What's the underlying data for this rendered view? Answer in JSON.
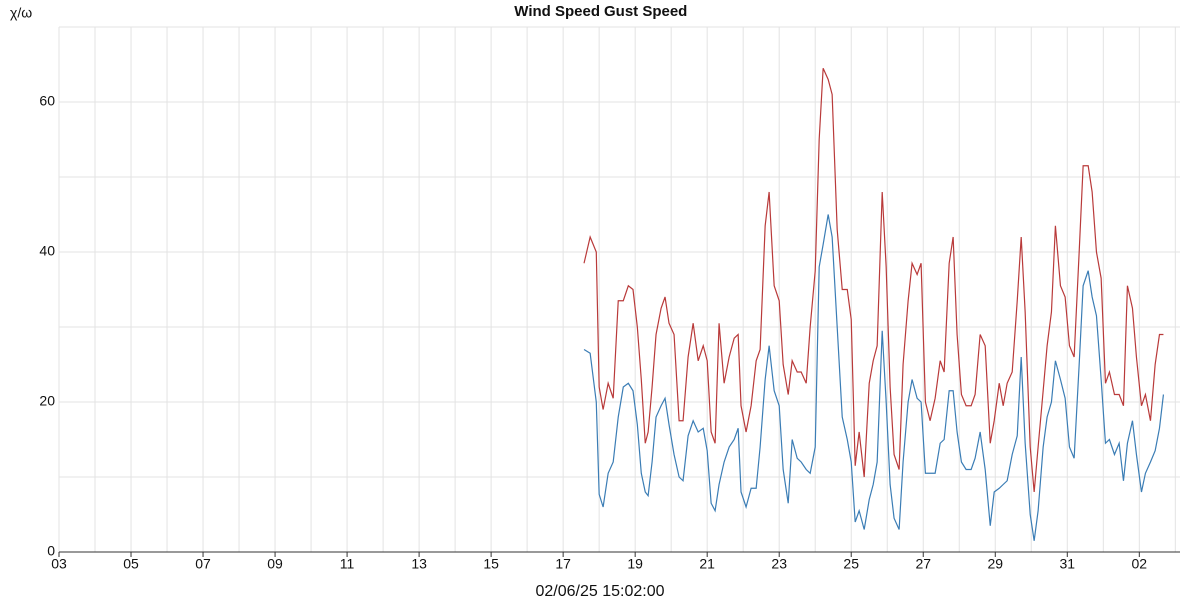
{
  "chart_data": {
    "type": "line",
    "ylabel": "χ/ω",
    "xlabel": "02/06/25 15:02:00",
    "legend": "top",
    "grid": true,
    "xlim": [
      0,
      31.13
    ],
    "ylim": [
      0,
      70
    ],
    "xticks": [
      {
        "value": 0,
        "label": "03"
      },
      {
        "value": 2,
        "label": "05"
      },
      {
        "value": 4,
        "label": "07"
      },
      {
        "value": 6,
        "label": "09"
      },
      {
        "value": 8,
        "label": "11"
      },
      {
        "value": 10,
        "label": "13"
      },
      {
        "value": 12,
        "label": "15"
      },
      {
        "value": 14,
        "label": "17"
      },
      {
        "value": 16,
        "label": "19"
      },
      {
        "value": 18,
        "label": "21"
      },
      {
        "value": 20,
        "label": "23"
      },
      {
        "value": 22,
        "label": "25"
      },
      {
        "value": 24,
        "label": "27"
      },
      {
        "value": 26,
        "label": "29"
      },
      {
        "value": 28,
        "label": "31"
      },
      {
        "value": 30,
        "label": "02"
      }
    ],
    "xminorticks": [
      1,
      3,
      5,
      7,
      9,
      11,
      13,
      15,
      17,
      19,
      21,
      23,
      25,
      27,
      29,
      31
    ],
    "yticks": [
      0,
      20,
      40,
      60
    ],
    "yminorticks": [
      10,
      30,
      50,
      70
    ],
    "x": [
      14.58,
      14.75,
      14.92,
      15.0,
      15.11,
      15.25,
      15.39,
      15.53,
      15.67,
      15.81,
      15.94,
      16.06,
      16.17,
      16.28,
      16.36,
      16.47,
      16.58,
      16.72,
      16.83,
      16.94,
      17.08,
      17.22,
      17.33,
      17.47,
      17.61,
      17.75,
      17.89,
      18.0,
      18.11,
      18.22,
      18.33,
      18.47,
      18.61,
      18.75,
      18.86,
      18.94,
      19.08,
      19.22,
      19.36,
      19.47,
      19.61,
      19.72,
      19.86,
      20.0,
      20.11,
      20.25,
      20.36,
      20.5,
      20.61,
      20.75,
      20.86,
      21.0,
      21.11,
      21.22,
      21.36,
      21.47,
      21.61,
      21.75,
      21.89,
      22.0,
      22.11,
      22.22,
      22.36,
      22.5,
      22.61,
      22.72,
      22.86,
      22.97,
      23.08,
      23.19,
      23.33,
      23.44,
      23.58,
      23.69,
      23.83,
      23.94,
      24.06,
      24.19,
      24.33,
      24.47,
      24.58,
      24.72,
      24.83,
      24.94,
      25.06,
      25.19,
      25.33,
      25.44,
      25.58,
      25.72,
      25.86,
      25.97,
      26.11,
      26.22,
      26.33,
      26.47,
      26.61,
      26.72,
      26.83,
      26.97,
      27.08,
      27.19,
      27.33,
      27.44,
      27.56,
      27.67,
      27.81,
      27.94,
      28.06,
      28.19,
      28.33,
      28.44,
      28.58,
      28.69,
      28.81,
      28.94,
      29.06,
      29.17,
      29.31,
      29.44,
      29.56,
      29.67,
      29.81,
      29.92,
      30.06,
      30.17,
      30.31,
      30.44,
      30.56,
      30.67
    ],
    "series": [
      {
        "name": "Wind Speed",
        "color": "#3b7db5",
        "values": [
          27,
          26.5,
          20,
          7.7,
          6,
          10.5,
          12,
          18,
          22,
          22.5,
          21.5,
          17,
          10.5,
          8,
          7.5,
          12,
          18,
          19.5,
          20.5,
          17,
          13,
          10,
          9.5,
          15.5,
          17.5,
          16,
          16.5,
          13.5,
          6.5,
          5.5,
          9,
          12,
          14,
          15,
          16.5,
          8,
          6,
          8.5,
          8.5,
          14,
          23,
          27.5,
          21.5,
          19.5,
          11,
          6.5,
          15,
          12.5,
          12,
          11,
          10.5,
          14,
          38,
          41,
          45,
          42,
          30,
          18,
          15,
          12,
          4,
          5.5,
          3,
          7,
          9,
          12,
          29.5,
          20,
          9,
          4.5,
          3,
          12,
          20,
          23,
          20.5,
          20,
          10.5,
          10.5,
          10.5,
          14.5,
          15,
          21.5,
          21.5,
          16,
          12,
          11,
          11,
          12.5,
          16,
          11,
          3.5,
          8,
          8.5,
          9,
          9.5,
          13,
          15.5,
          26,
          14.5,
          5,
          1.5,
          5.5,
          14,
          18,
          20,
          25.5,
          23,
          20.5,
          14,
          12.5,
          25,
          35.5,
          37.5,
          34,
          31.5,
          23,
          14.5,
          15,
          13,
          14.5,
          9.5,
          14.5,
          17.5,
          13,
          8,
          10.5,
          12,
          13.5,
          16.5,
          21
        ]
      },
      {
        "name": "Gust Speed",
        "color": "#b93a3a",
        "values": [
          38.5,
          42,
          40,
          22,
          19,
          22.5,
          20.5,
          33.5,
          33.5,
          35.5,
          35,
          30,
          23,
          14.5,
          16,
          22,
          29,
          32.5,
          34,
          30.5,
          29,
          17.5,
          17.5,
          26,
          30.5,
          25.5,
          27.5,
          25.5,
          16,
          14.5,
          30.5,
          22.5,
          26,
          28.5,
          29,
          19.5,
          16,
          19.5,
          25.5,
          27,
          43.5,
          48,
          35.5,
          33.5,
          25,
          21,
          25.5,
          24,
          24,
          22.5,
          30,
          37.5,
          55,
          64.5,
          63,
          61,
          43,
          35,
          35,
          31,
          11.5,
          16,
          10,
          22.5,
          25.5,
          27.5,
          48,
          38,
          22,
          13,
          11,
          25,
          33.5,
          38.5,
          37,
          38.5,
          20,
          17.5,
          20.5,
          25.5,
          24,
          38.5,
          42,
          29,
          21,
          19.5,
          19.5,
          21,
          29,
          27.5,
          14.5,
          17.5,
          22.5,
          19.5,
          22.5,
          24,
          33.5,
          42,
          32,
          14,
          8,
          14,
          21.5,
          27.5,
          32,
          43.5,
          35.5,
          34,
          27.5,
          26,
          40,
          51.5,
          51.5,
          48,
          40,
          36.5,
          22.5,
          24,
          21,
          21,
          19.5,
          35.5,
          32.5,
          26,
          19.5,
          21,
          17.5,
          25,
          29,
          29
        ]
      }
    ]
  }
}
